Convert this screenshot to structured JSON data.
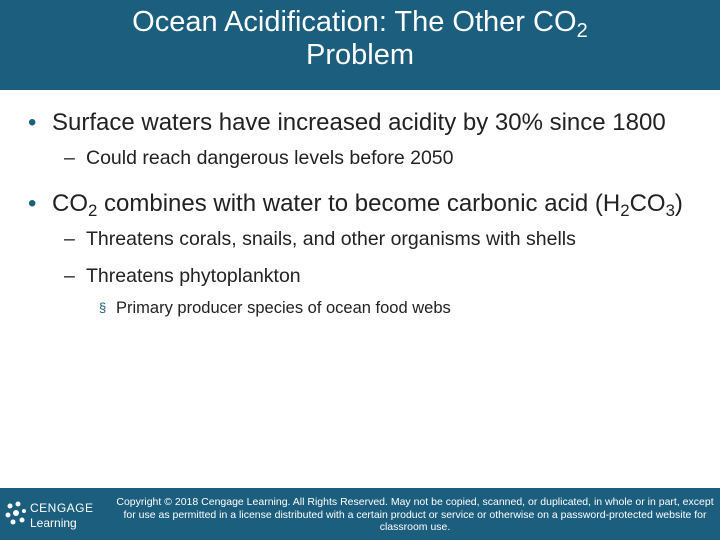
{
  "title": {
    "lines": [
      [
        {
          "text": "Ocean Acidification: The Other CO",
          "sub": false
        },
        {
          "text": "2",
          "sub": true
        }
      ],
      [
        {
          "text": "Problem",
          "sub": false
        }
      ]
    ]
  },
  "items": [
    {
      "level": 1,
      "runs": [
        {
          "text": "Surface waters have increased acidity by 30% since 1800",
          "sub": false
        }
      ]
    },
    {
      "level": 2,
      "runs": [
        {
          "text": "Could reach dangerous levels before 2050",
          "sub": false
        }
      ]
    },
    {
      "level": 1,
      "runs": [
        {
          "text": "CO",
          "sub": false
        },
        {
          "text": "2",
          "sub": true
        },
        {
          "text": " combines with water to become carbonic acid (H",
          "sub": false
        },
        {
          "text": "2",
          "sub": true
        },
        {
          "text": "CO",
          "sub": false
        },
        {
          "text": "3",
          "sub": true
        },
        {
          "text": ")",
          "sub": false
        }
      ]
    },
    {
      "level": 2,
      "runs": [
        {
          "text": "Threatens corals, snails, and other organisms with shells",
          "sub": false
        }
      ]
    },
    {
      "level": 2,
      "runs": [
        {
          "text": "Threatens phytoplankton",
          "sub": false
        }
      ]
    },
    {
      "level": 3,
      "runs": [
        {
          "text": "Primary producer species of ocean food webs",
          "sub": false
        }
      ]
    }
  ],
  "footer": {
    "logo_top": "CENGAGE",
    "logo_bottom": "Learning",
    "copyright": "Copyright © 2018 Cengage Learning. All Rights Reserved. May not be copied, scanned, or duplicated, in whole or in part, except for use as permitted in a license distributed with a certain product or service or otherwise on a password-protected website for classroom use."
  }
}
